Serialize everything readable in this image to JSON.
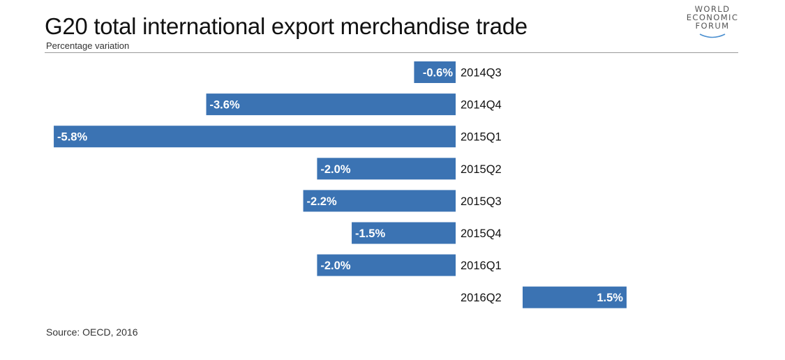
{
  "header": {
    "title": "G20 total international export merchandise trade",
    "subtitle": "Percentage variation"
  },
  "logo": {
    "line1": "WORLD",
    "line2": "ECONOMIC",
    "line3": "FORUM"
  },
  "footer": {
    "source": "Source: OECD, 2016"
  },
  "colors": {
    "bar": "#3b73b3",
    "label_on_bar": "#ffffff",
    "category_text": "#111111",
    "rule": "#999999"
  },
  "chart_data": {
    "type": "bar",
    "orientation": "horizontal",
    "categories": [
      "2014Q3",
      "2014Q4",
      "2015Q1",
      "2015Q2",
      "2015Q3",
      "2015Q4",
      "2016Q1",
      "2016Q2"
    ],
    "values": [
      -0.6,
      -3.6,
      -5.8,
      -2.0,
      -2.2,
      -1.5,
      -2.0,
      1.5
    ],
    "data_labels": [
      "-0.6%",
      "-3.6%",
      "-5.8%",
      "-2.0%",
      "-2.2%",
      "-1.5%",
      "-2.0%",
      "1.5%"
    ],
    "title": "G20 total international export merchandise trade",
    "subtitle": "Percentage variation",
    "xlabel": "",
    "ylabel": "",
    "xlim": [
      -5.8,
      1.5
    ],
    "grid": false,
    "legend": "none"
  }
}
